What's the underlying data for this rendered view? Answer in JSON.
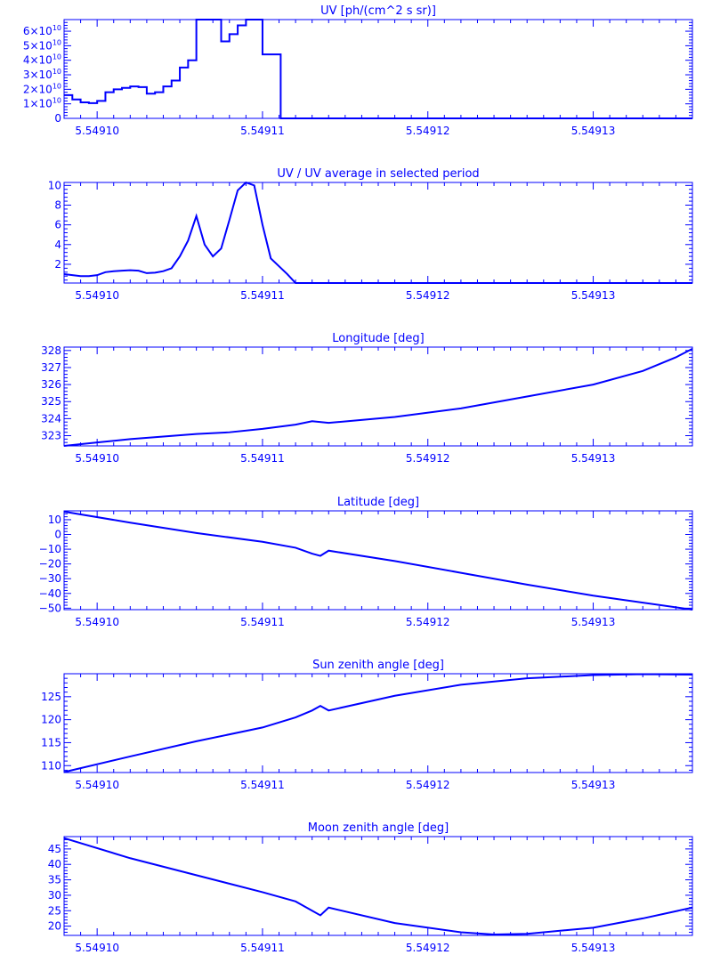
{
  "page": {
    "background": "#ffffff",
    "ink": "#0000ff"
  },
  "chart_data": [
    {
      "type": "line",
      "title": "UV [ph/(cm^2 s sr)]",
      "xlabel": "",
      "ylabel": "",
      "xlim": [
        5.549098,
        5.549136
      ],
      "ylim": [
        0,
        68000000000.0
      ],
      "xticks": [
        "5.54910",
        "5.54911",
        "5.54912",
        "5.54913"
      ],
      "yticks": [
        {
          "v": 0,
          "base": "0",
          "exp": ""
        },
        {
          "v": 10000000000.0,
          "base": "1×10",
          "exp": "10"
        },
        {
          "v": 20000000000.0,
          "base": "2×10",
          "exp": "10"
        },
        {
          "v": 30000000000.0,
          "base": "3×10",
          "exp": "10"
        },
        {
          "v": 40000000000.0,
          "base": "4×10",
          "exp": "10"
        },
        {
          "v": 50000000000.0,
          "base": "5×10",
          "exp": "10"
        },
        {
          "v": 60000000000.0,
          "base": "6×10",
          "exp": "10"
        }
      ],
      "series": [
        {
          "step": true,
          "x": [
            5.549098,
            5.5490985,
            5.549099,
            5.5490995,
            5.5491,
            5.5491005,
            5.549101,
            5.5491015,
            5.549102,
            5.5491025,
            5.549103,
            5.5491035,
            5.549104,
            5.5491045,
            5.549105,
            5.5491055,
            5.549106,
            5.5491065,
            5.549107,
            5.5491075,
            5.549108,
            5.5491085,
            5.549109,
            5.5491095,
            5.54911,
            5.5491105,
            5.5491111,
            5.549136
          ],
          "values": [
            16000000000.0,
            13000000000.0,
            11000000000.0,
            10500000000.0,
            12000000000.0,
            18000000000.0,
            20000000000.0,
            21000000000.0,
            22000000000.0,
            21500000000.0,
            17000000000.0,
            18000000000.0,
            22000000000.0,
            26000000000.0,
            35000000000.0,
            40000000000.0,
            68000000000.0,
            68000000000.0,
            68000000000.0,
            53000000000.0,
            58000000000.0,
            64000000000.0,
            68000000000.0,
            68000000000.0,
            44000000000.0,
            44000000000.0,
            0,
            0
          ]
        }
      ]
    },
    {
      "type": "line",
      "title": "UV / UV average in selected period",
      "xlabel": "",
      "ylabel": "",
      "xlim": [
        5.549098,
        5.549136
      ],
      "ylim": [
        0.1,
        10.3
      ],
      "xticks": [
        "5.54910",
        "5.54911",
        "5.54912",
        "5.54913"
      ],
      "yticks": [
        {
          "v": 2,
          "base": "2",
          "exp": ""
        },
        {
          "v": 4,
          "base": "4",
          "exp": ""
        },
        {
          "v": 6,
          "base": "6",
          "exp": ""
        },
        {
          "v": 8,
          "base": "8",
          "exp": ""
        },
        {
          "v": 10,
          "base": "10",
          "exp": ""
        }
      ],
      "series": [
        {
          "x": [
            5.549098,
            5.5490985,
            5.549099,
            5.5490995,
            5.5491,
            5.5491005,
            5.549101,
            5.5491015,
            5.549102,
            5.5491025,
            5.549103,
            5.5491035,
            5.549104,
            5.5491045,
            5.549105,
            5.5491055,
            5.549106,
            5.5491065,
            5.549107,
            5.5491075,
            5.549108,
            5.5491085,
            5.549109,
            5.5491095,
            5.54911,
            5.5491105,
            5.549111,
            5.5491115,
            5.549112,
            5.549136
          ],
          "values": [
            1.0,
            0.9,
            0.8,
            0.8,
            0.9,
            1.2,
            1.3,
            1.35,
            1.4,
            1.35,
            1.1,
            1.15,
            1.3,
            1.6,
            2.8,
            4.4,
            6.9,
            4.0,
            2.8,
            3.6,
            6.5,
            9.5,
            10.3,
            10.0,
            6.0,
            2.6,
            1.8,
            1.0,
            0.1,
            0.1
          ]
        }
      ]
    },
    {
      "type": "line",
      "title": "Longitude [deg]",
      "xlabel": "",
      "ylabel": "",
      "xlim": [
        5.549098,
        5.549136
      ],
      "ylim": [
        322.4,
        328.2
      ],
      "xticks": [
        "5.54910",
        "5.54911",
        "5.54912",
        "5.54913"
      ],
      "yticks": [
        {
          "v": 323,
          "base": "323",
          "exp": ""
        },
        {
          "v": 324,
          "base": "324",
          "exp": ""
        },
        {
          "v": 325,
          "base": "325",
          "exp": ""
        },
        {
          "v": 326,
          "base": "326",
          "exp": ""
        },
        {
          "v": 327,
          "base": "327",
          "exp": ""
        },
        {
          "v": 328,
          "base": "328",
          "exp": ""
        }
      ],
      "series": [
        {
          "x": [
            5.549098,
            5.5491,
            5.549102,
            5.549104,
            5.549106,
            5.549108,
            5.54911,
            5.549112,
            5.549113,
            5.549114,
            5.549118,
            5.549122,
            5.549126,
            5.54913,
            5.549133,
            5.549135,
            5.549136
          ],
          "values": [
            322.4,
            322.6,
            322.8,
            322.95,
            323.1,
            323.2,
            323.4,
            323.65,
            323.85,
            323.75,
            324.1,
            324.6,
            325.3,
            326.0,
            326.8,
            327.6,
            328.1
          ]
        }
      ]
    },
    {
      "type": "line",
      "title": "Latitude [deg]",
      "xlabel": "",
      "ylabel": "",
      "xlim": [
        5.549098,
        5.549136
      ],
      "ylim": [
        -51,
        16
      ],
      "xticks": [
        "5.54910",
        "5.54911",
        "5.54912",
        "5.54913"
      ],
      "yticks": [
        {
          "v": -50,
          "base": "−50",
          "exp": ""
        },
        {
          "v": -40,
          "base": "−40",
          "exp": ""
        },
        {
          "v": -30,
          "base": "−30",
          "exp": ""
        },
        {
          "v": -20,
          "base": "−20",
          "exp": ""
        },
        {
          "v": -10,
          "base": "−10",
          "exp": ""
        },
        {
          "v": 0,
          "base": "0",
          "exp": ""
        },
        {
          "v": 10,
          "base": "10",
          "exp": ""
        }
      ],
      "series": [
        {
          "x": [
            5.549098,
            5.549102,
            5.549106,
            5.54911,
            5.549112,
            5.549113,
            5.5491135,
            5.549114,
            5.549118,
            5.549122,
            5.549126,
            5.54913,
            5.549136
          ],
          "values": [
            15.5,
            8.0,
            1.0,
            -5.0,
            -9.0,
            -13.0,
            -14.5,
            -11.0,
            -18.0,
            -26.0,
            -34.0,
            -41.5,
            -51.0
          ]
        }
      ]
    },
    {
      "type": "line",
      "title": "Sun zenith angle [deg]",
      "xlabel": "",
      "ylabel": "",
      "xlim": [
        5.549098,
        5.549136
      ],
      "ylim": [
        108.5,
        130
      ],
      "xticks": [
        "5.54910",
        "5.54911",
        "5.54912",
        "5.54913"
      ],
      "yticks": [
        {
          "v": 110,
          "base": "110",
          "exp": ""
        },
        {
          "v": 115,
          "base": "115",
          "exp": ""
        },
        {
          "v": 120,
          "base": "120",
          "exp": ""
        },
        {
          "v": 125,
          "base": "125",
          "exp": ""
        }
      ],
      "series": [
        {
          "x": [
            5.549098,
            5.549102,
            5.549106,
            5.54911,
            5.549112,
            5.549113,
            5.5491135,
            5.549114,
            5.549118,
            5.549122,
            5.549126,
            5.54913,
            5.549133,
            5.549136
          ],
          "values": [
            108.6,
            112.0,
            115.3,
            118.3,
            120.5,
            122.0,
            123.0,
            122.0,
            125.2,
            127.6,
            129.0,
            129.7,
            129.9,
            129.8
          ]
        }
      ]
    },
    {
      "type": "line",
      "title": "Moon zenith angle [deg]",
      "xlabel": "",
      "ylabel": "",
      "xlim": [
        5.549098,
        5.549136
      ],
      "ylim": [
        17,
        49
      ],
      "xticks": [
        "5.54910",
        "5.54911",
        "5.54912",
        "5.54913"
      ],
      "yticks": [
        {
          "v": 20,
          "base": "20",
          "exp": ""
        },
        {
          "v": 25,
          "base": "25",
          "exp": ""
        },
        {
          "v": 30,
          "base": "30",
          "exp": ""
        },
        {
          "v": 35,
          "base": "35",
          "exp": ""
        },
        {
          "v": 40,
          "base": "40",
          "exp": ""
        },
        {
          "v": 45,
          "base": "45",
          "exp": ""
        }
      ],
      "series": [
        {
          "x": [
            5.549098,
            5.549102,
            5.549106,
            5.54911,
            5.549112,
            5.549113,
            5.5491135,
            5.549114,
            5.549118,
            5.549122,
            5.549124,
            5.549126,
            5.54913,
            5.549133,
            5.549136
          ],
          "values": [
            48.5,
            42.0,
            36.5,
            31.0,
            28.0,
            25.0,
            23.5,
            26.0,
            21.0,
            18.0,
            17.3,
            17.5,
            19.5,
            22.5,
            26.0
          ]
        }
      ]
    }
  ]
}
